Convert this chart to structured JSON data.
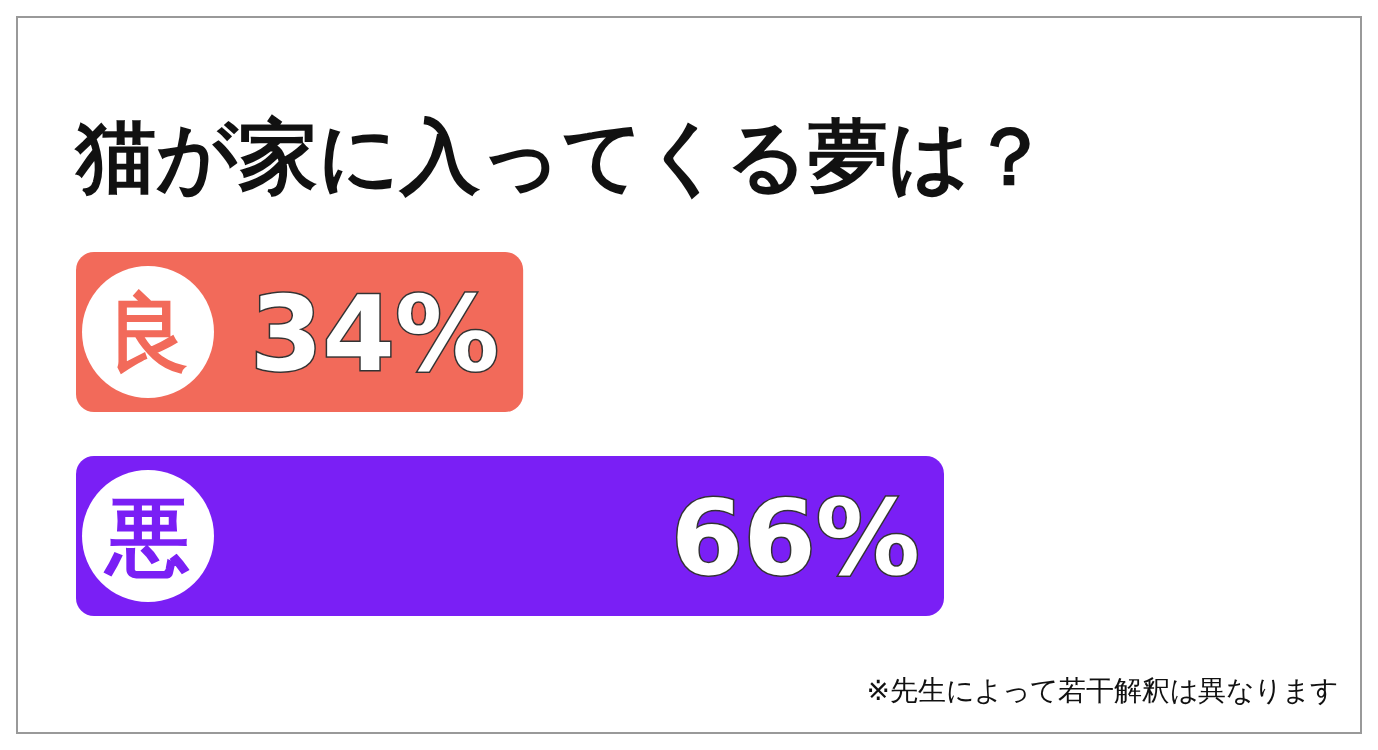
{
  "chart_data": {
    "type": "bar",
    "orientation": "horizontal",
    "title": "猫が家に入ってくる夢は？",
    "categories": [
      "良",
      "悪"
    ],
    "values": [
      34,
      66
    ],
    "colors": [
      "#f26a5a",
      "#7a1ff5"
    ],
    "value_labels": [
      "34%",
      "66%"
    ],
    "annotations": [
      "※先生によって若干解釈は異なります"
    ]
  }
}
